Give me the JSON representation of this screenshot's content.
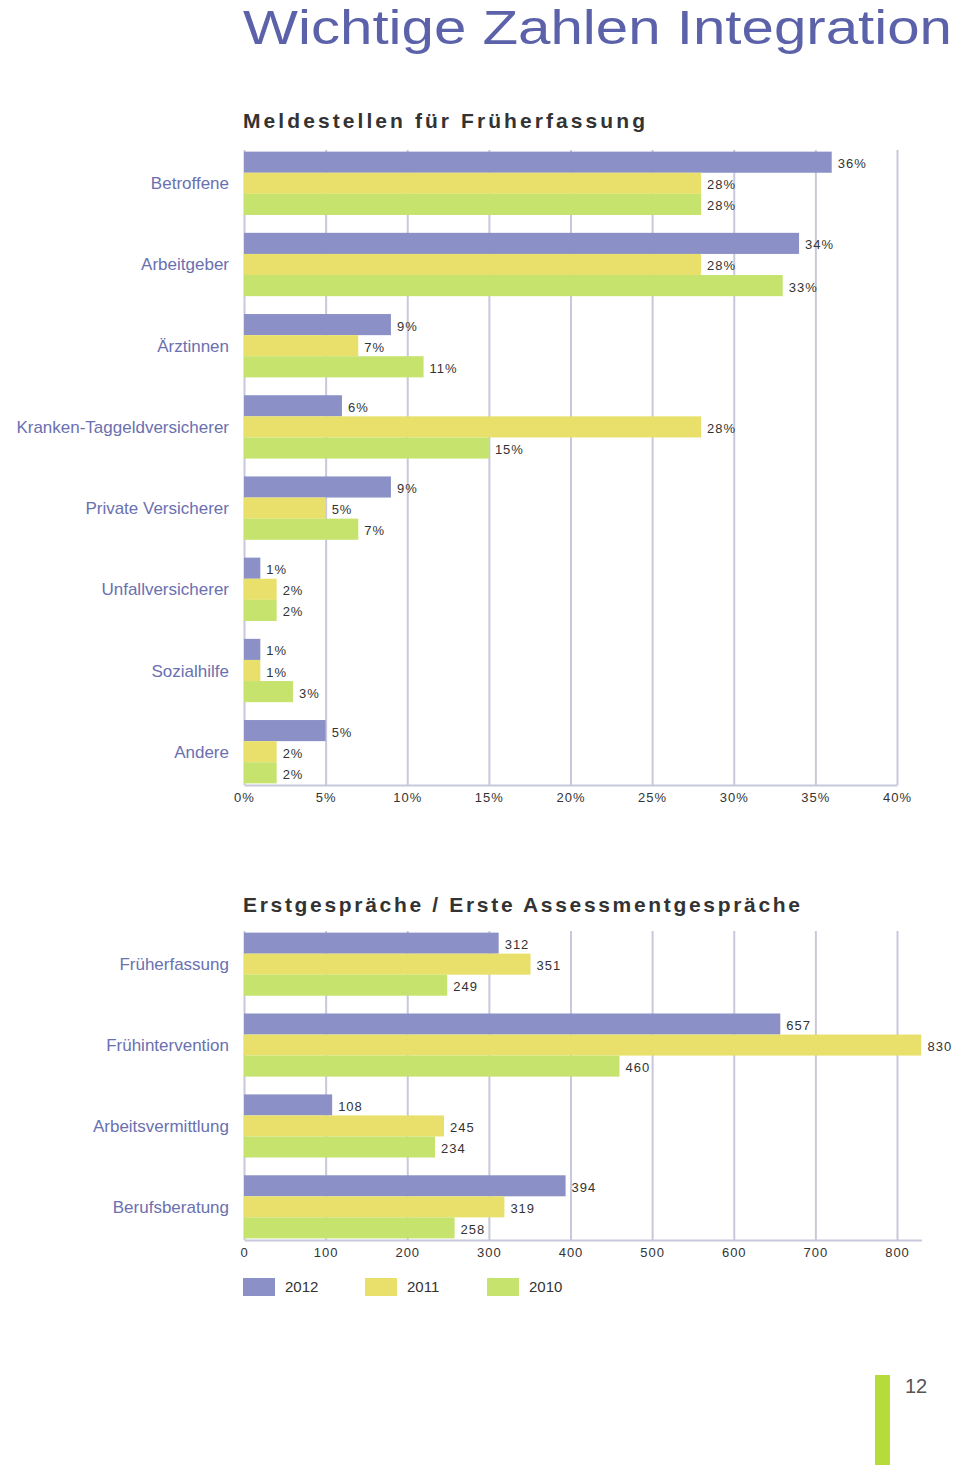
{
  "heading": "Wichtige Zahlen Integration",
  "page_number": 12,
  "chart_data": [
    {
      "type": "bar",
      "orientation": "horizontal",
      "title": "Meldestellen für Früherfassung",
      "categories": [
        "Betroffene",
        "Arbeitgeber",
        "Ärztinnen",
        "Kranken-Taggeldversicherer",
        "Private Versicherer",
        "Unfallversicherer",
        "Sozialhilfe",
        "Andere"
      ],
      "series": [
        {
          "name": "2012",
          "color": "#8b91c6",
          "values": [
            36,
            34,
            9,
            6,
            9,
            1,
            1,
            5
          ],
          "value_labels": [
            "36%",
            "34%",
            "9%",
            "6%",
            "9%",
            "1%",
            "1%",
            "5%"
          ]
        },
        {
          "name": "2011",
          "color": "#e8e06a",
          "values": [
            28,
            28,
            7,
            28,
            5,
            2,
            1,
            2
          ],
          "value_labels": [
            "28%",
            "28%",
            "7%",
            "28%",
            "5%",
            "2%",
            "1%",
            "2%"
          ]
        },
        {
          "name": "2010",
          "color": "#c5e36d",
          "values": [
            28,
            33,
            11,
            15,
            7,
            2,
            3,
            2
          ],
          "value_labels": [
            "28%",
            "33%",
            "11%",
            "15%",
            "7%",
            "2%",
            "3%",
            "2%"
          ]
        }
      ],
      "xlim": [
        0,
        40
      ],
      "xticks": [
        {
          "value": 0,
          "label": "0%"
        },
        {
          "value": 5,
          "label": "5%"
        },
        {
          "value": 10,
          "label": "10%"
        },
        {
          "value": 15,
          "label": "15%"
        },
        {
          "value": 20,
          "label": "20%"
        },
        {
          "value": 25,
          "label": "25%"
        },
        {
          "value": 30,
          "label": "30%"
        },
        {
          "value": 35,
          "label": "35%"
        },
        {
          "value": 40,
          "label": "40%"
        }
      ],
      "grid": true,
      "data_labels": true
    },
    {
      "type": "bar",
      "orientation": "horizontal",
      "title": "Erstgespräche / Erste Assessmentgespräche",
      "categories": [
        "Früherfassung",
        "Frühintervention",
        "Arbeitsvermittlung",
        "Berufsberatung"
      ],
      "series": [
        {
          "name": "2012",
          "color": "#8b91c6",
          "values": [
            312,
            657,
            108,
            394
          ]
        },
        {
          "name": "2011",
          "color": "#e8e06a",
          "values": [
            351,
            830,
            245,
            319
          ]
        },
        {
          "name": "2010",
          "color": "#c5e36d",
          "values": [
            249,
            460,
            234,
            258
          ]
        }
      ],
      "xlim": [
        0,
        830
      ],
      "xticks": [
        0,
        100,
        200,
        300,
        400,
        500,
        600,
        700,
        800
      ],
      "grid": true,
      "data_labels": true,
      "legend": "bottom"
    }
  ]
}
